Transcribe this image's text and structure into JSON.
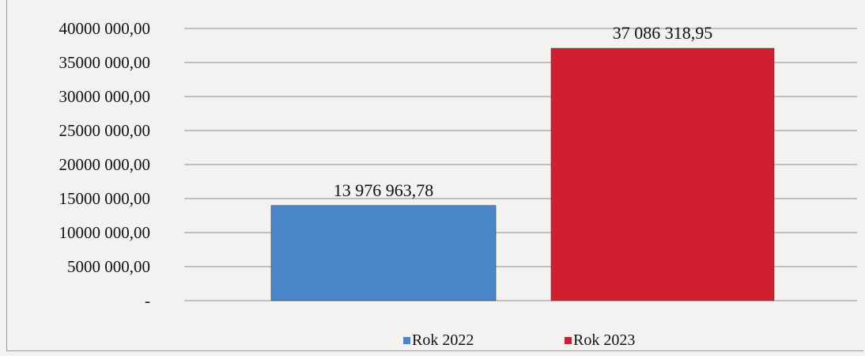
{
  "chart_data": {
    "type": "bar",
    "categories": [
      ""
    ],
    "series": [
      {
        "name": "Rok 2022",
        "values": [
          13976963.78
        ],
        "label": "13 976 963,78",
        "color": "#4a86c8"
      },
      {
        "name": "Rok 2023",
        "values": [
          37086318.95
        ],
        "label": "37 086 318,95",
        "color": "#d01f2e"
      }
    ],
    "title": "",
    "xlabel": "",
    "ylabel": "",
    "ylim": [
      0,
      40000000
    ],
    "yticks": [
      {
        "value": 0,
        "label": "-"
      },
      {
        "value": 5000000,
        "label": "5000 000,00"
      },
      {
        "value": 10000000,
        "label": "10000 000,00"
      },
      {
        "value": 15000000,
        "label": "15000 000,00"
      },
      {
        "value": 20000000,
        "label": "20000 000,00"
      },
      {
        "value": 25000000,
        "label": "25000 000,00"
      },
      {
        "value": 30000000,
        "label": "30000 000,00"
      },
      {
        "value": 35000000,
        "label": "35000 000,00"
      },
      {
        "value": 40000000,
        "label": "40000 000,00"
      }
    ],
    "grid": true,
    "legend": "bottom-center",
    "gridline_color": "#8c8c8c"
  }
}
